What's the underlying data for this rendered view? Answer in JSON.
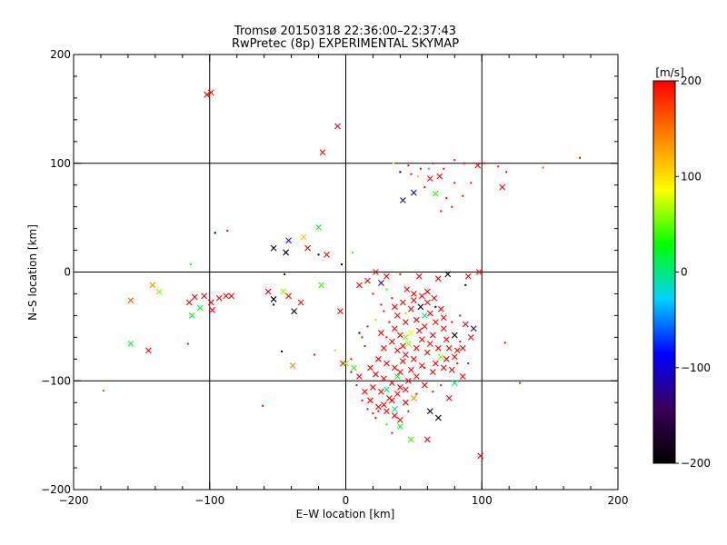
{
  "chart_data": {
    "type": "scatter",
    "title": "Tromsø 20150318 22:36:00–22:37:43",
    "subtitle": "RwPretec (8p) EXPERIMENTAL SKYMAP",
    "xlabel": "E–W location [km]",
    "ylabel": "N–S location [km]",
    "xlim": [
      -200,
      200
    ],
    "ylim": [
      -200,
      200
    ],
    "xticks": [
      -200,
      -100,
      0,
      100,
      200
    ],
    "yticks": [
      -200,
      -100,
      0,
      100,
      200
    ],
    "grid": [
      -100,
      0,
      100
    ],
    "grid_on": true,
    "colorbar": {
      "label": "[m/s]",
      "range": [
        -200,
        200
      ],
      "ticks": [
        200,
        100,
        0,
        -100,
        -200
      ],
      "colors": [
        "#000000",
        "#3a005a",
        "#0000ff",
        "#00d0ff",
        "#00ff00",
        "#ffff00",
        "#ff8000",
        "#ff0000"
      ]
    },
    "points": [
      [
        -99,
        165,
        200,
        "x"
      ],
      [
        -102,
        163,
        200,
        "x"
      ],
      [
        -6,
        134,
        200,
        "x"
      ],
      [
        -17,
        110,
        200,
        "x"
      ],
      [
        -96,
        36,
        -200,
        "d"
      ],
      [
        -87,
        38,
        200,
        "d"
      ],
      [
        -20,
        41,
        20,
        "x"
      ],
      [
        -31,
        32,
        110,
        "x"
      ],
      [
        -42,
        29,
        -80,
        "x"
      ],
      [
        -53,
        22,
        -200,
        "x"
      ],
      [
        -44,
        18,
        -200,
        "x"
      ],
      [
        -28,
        22,
        200,
        "x"
      ],
      [
        -20,
        16,
        -200,
        "d"
      ],
      [
        -14,
        16,
        200,
        "x"
      ],
      [
        -3,
        7,
        -200,
        "d"
      ],
      [
        5,
        18,
        40,
        "d"
      ],
      [
        -114,
        7,
        20,
        "d"
      ],
      [
        -158,
        -26,
        160,
        "x"
      ],
      [
        -142,
        -12,
        140,
        "x"
      ],
      [
        -137,
        -18,
        60,
        "x"
      ],
      [
        -158,
        -66,
        20,
        "x"
      ],
      [
        -145,
        -72,
        200,
        "x"
      ],
      [
        -115,
        -28,
        200,
        "x"
      ],
      [
        -111,
        -23,
        200,
        "x"
      ],
      [
        -107,
        -33,
        20,
        "x"
      ],
      [
        -113,
        -40,
        20,
        "x"
      ],
      [
        -104,
        -22,
        200,
        "x"
      ],
      [
        -99,
        -28,
        200,
        "x"
      ],
      [
        -98,
        -35,
        200,
        "x"
      ],
      [
        -93,
        -24,
        200,
        "x"
      ],
      [
        -88,
        -22,
        200,
        "x"
      ],
      [
        -84,
        -22,
        200,
        "x"
      ],
      [
        -57,
        -18,
        200,
        "x"
      ],
      [
        -53,
        -25,
        -200,
        "x"
      ],
      [
        -46,
        -18,
        60,
        "x"
      ],
      [
        -42,
        -22,
        200,
        "x"
      ],
      [
        -33,
        -28,
        200,
        "x"
      ],
      [
        -38,
        -36,
        -200,
        "x"
      ],
      [
        -53,
        -30,
        -200,
        "d"
      ],
      [
        -18,
        -12,
        40,
        "x"
      ],
      [
        -45,
        -2,
        -200,
        "d"
      ],
      [
        -4,
        -36,
        200,
        "x"
      ],
      [
        -2,
        -84,
        200,
        "x"
      ],
      [
        -39,
        -86,
        140,
        "x"
      ],
      [
        -116,
        -66,
        200,
        "d"
      ],
      [
        -178,
        -109,
        160,
        "d"
      ],
      [
        -61,
        -123,
        200,
        "d"
      ],
      [
        -47,
        -73,
        -200,
        "d"
      ],
      [
        -23,
        -76,
        200,
        "d"
      ],
      [
        -8,
        -72,
        60,
        "d"
      ],
      [
        42,
        66,
        -120,
        "x"
      ],
      [
        50,
        73,
        -120,
        "x"
      ],
      [
        46,
        98,
        200,
        "d"
      ],
      [
        55,
        95,
        200,
        "d"
      ],
      [
        64,
        100,
        200,
        "d"
      ],
      [
        72,
        95,
        200,
        "d"
      ],
      [
        80,
        103,
        200,
        "d"
      ],
      [
        87,
        100,
        200,
        "d"
      ],
      [
        97,
        98,
        200,
        "x"
      ],
      [
        102,
        100,
        200,
        "d"
      ],
      [
        112,
        97,
        200,
        "d"
      ],
      [
        118,
        92,
        200,
        "d"
      ],
      [
        145,
        96,
        160,
        "d"
      ],
      [
        172,
        105,
        200,
        "d"
      ],
      [
        115,
        78,
        200,
        "x"
      ],
      [
        92,
        82,
        200,
        "d"
      ],
      [
        80,
        82,
        200,
        "d"
      ],
      [
        69,
        88,
        200,
        "x"
      ],
      [
        62,
        86,
        200,
        "x"
      ],
      [
        58,
        78,
        200,
        "d"
      ],
      [
        66,
        72,
        40,
        "x"
      ],
      [
        74,
        68,
        200,
        "d"
      ],
      [
        86,
        70,
        200,
        "d"
      ],
      [
        40,
        92,
        -200,
        "d"
      ],
      [
        48,
        90,
        200,
        "d"
      ],
      [
        35,
        100,
        80,
        "d"
      ],
      [
        61,
        95,
        20,
        "d"
      ],
      [
        53,
        88,
        120,
        "d"
      ],
      [
        78,
        60,
        200,
        "d"
      ],
      [
        70,
        56,
        200,
        "d"
      ],
      [
        22,
        0,
        200,
        "x"
      ],
      [
        30,
        -4,
        200,
        "x"
      ],
      [
        40,
        -2,
        200,
        "d"
      ],
      [
        54,
        -4,
        200,
        "x"
      ],
      [
        68,
        -6,
        200,
        "x"
      ],
      [
        75,
        -2,
        -200,
        "x"
      ],
      [
        90,
        -4,
        200,
        "x"
      ],
      [
        98,
        0,
        200,
        "x"
      ],
      [
        88,
        -12,
        -200,
        "d"
      ],
      [
        16,
        -8,
        200,
        "x"
      ],
      [
        10,
        -12,
        200,
        "x"
      ],
      [
        26,
        -10,
        -120,
        "x"
      ],
      [
        30,
        -16,
        40,
        "d"
      ],
      [
        45,
        -16,
        200,
        "x"
      ],
      [
        50,
        -20,
        200,
        "x"
      ],
      [
        60,
        -18,
        200,
        "x"
      ],
      [
        65,
        -24,
        200,
        "x"
      ],
      [
        42,
        -28,
        200,
        "x"
      ],
      [
        48,
        -34,
        200,
        "x"
      ],
      [
        55,
        -32,
        -200,
        "x"
      ],
      [
        62,
        -38,
        200,
        "x"
      ],
      [
        70,
        -34,
        200,
        "x"
      ],
      [
        38,
        -40,
        200,
        "x"
      ],
      [
        44,
        -46,
        200,
        "x"
      ],
      [
        52,
        -44,
        200,
        "x"
      ],
      [
        58,
        -50,
        200,
        "x"
      ],
      [
        66,
        -46,
        200,
        "x"
      ],
      [
        72,
        -52,
        200,
        "x"
      ],
      [
        36,
        -52,
        200,
        "x"
      ],
      [
        40,
        -58,
        200,
        "x"
      ],
      [
        48,
        -56,
        80,
        "x"
      ],
      [
        56,
        -62,
        200,
        "x"
      ],
      [
        64,
        -58,
        200,
        "x"
      ],
      [
        74,
        -62,
        200,
        "x"
      ],
      [
        80,
        -58,
        -200,
        "x"
      ],
      [
        88,
        -48,
        200,
        "x"
      ],
      [
        94,
        -52,
        -120,
        "x"
      ],
      [
        34,
        -64,
        200,
        "x"
      ],
      [
        28,
        -70,
        200,
        "x"
      ],
      [
        38,
        -72,
        200,
        "x"
      ],
      [
        44,
        -76,
        200,
        "x"
      ],
      [
        52,
        -70,
        200,
        "x"
      ],
      [
        60,
        -74,
        200,
        "x"
      ],
      [
        68,
        -70,
        200,
        "x"
      ],
      [
        76,
        -70,
        200,
        "x"
      ],
      [
        82,
        -72,
        200,
        "x"
      ],
      [
        86,
        -70,
        200,
        "x"
      ],
      [
        80,
        -78,
        200,
        "x"
      ],
      [
        24,
        -80,
        200,
        "x"
      ],
      [
        30,
        -84,
        200,
        "x"
      ],
      [
        36,
        -88,
        200,
        "x"
      ],
      [
        42,
        -82,
        200,
        "x"
      ],
      [
        48,
        -90,
        200,
        "x"
      ],
      [
        56,
        -86,
        200,
        "x"
      ],
      [
        64,
        -92,
        200,
        "x"
      ],
      [
        72,
        -88,
        200,
        "x"
      ],
      [
        18,
        -88,
        200,
        "x"
      ],
      [
        22,
        -94,
        200,
        "x"
      ],
      [
        28,
        -98,
        200,
        "x"
      ],
      [
        34,
        -102,
        200,
        "x"
      ],
      [
        40,
        -106,
        200,
        "x"
      ],
      [
        46,
        -100,
        200,
        "x"
      ],
      [
        52,
        -96,
        200,
        "x"
      ],
      [
        58,
        -104,
        200,
        "x"
      ],
      [
        20,
        -106,
        200,
        "x"
      ],
      [
        26,
        -110,
        200,
        "x"
      ],
      [
        32,
        -116,
        200,
        "x"
      ],
      [
        38,
        -112,
        200,
        "x"
      ],
      [
        44,
        -120,
        200,
        "x"
      ],
      [
        50,
        -116,
        140,
        "x"
      ],
      [
        18,
        -118,
        200,
        "x"
      ],
      [
        24,
        -124,
        200,
        "x"
      ],
      [
        30,
        -128,
        200,
        "x"
      ],
      [
        36,
        -132,
        200,
        "x"
      ],
      [
        40,
        -136,
        200,
        "x"
      ],
      [
        62,
        -128,
        -200,
        "x"
      ],
      [
        68,
        -134,
        -200,
        "x"
      ],
      [
        80,
        -102,
        0,
        "x"
      ],
      [
        76,
        -116,
        200,
        "x"
      ],
      [
        92,
        -60,
        200,
        "x"
      ],
      [
        14,
        -110,
        200,
        "x"
      ],
      [
        10,
        -96,
        200,
        "x"
      ],
      [
        6,
        -88,
        40,
        "x"
      ],
      [
        30,
        -108,
        0,
        "x"
      ],
      [
        36,
        -126,
        0,
        "x"
      ],
      [
        44,
        -60,
        60,
        "x"
      ],
      [
        58,
        -40,
        0,
        "x"
      ],
      [
        40,
        -142,
        20,
        "x"
      ],
      [
        48,
        -154,
        40,
        "x"
      ],
      [
        60,
        -154,
        200,
        "x"
      ],
      [
        99,
        -169,
        200,
        "x"
      ],
      [
        128,
        -102,
        200,
        "d"
      ],
      [
        117,
        -65,
        200,
        "d"
      ],
      [
        12,
        -60,
        200,
        "d"
      ],
      [
        16,
        -50,
        200,
        "d"
      ],
      [
        22,
        -44,
        60,
        "d"
      ],
      [
        28,
        -36,
        200,
        "d"
      ],
      [
        34,
        -24,
        200,
        "d"
      ],
      [
        20,
        -20,
        200,
        "d"
      ],
      [
        26,
        -30,
        200,
        "d"
      ],
      [
        10,
        -56,
        -200,
        "d"
      ],
      [
        14,
        -68,
        200,
        "d"
      ],
      [
        30,
        -140,
        40,
        "d"
      ],
      [
        24,
        -128,
        200,
        "d"
      ],
      [
        20,
        -130,
        200,
        "d"
      ],
      [
        38,
        -96,
        20,
        "x"
      ],
      [
        46,
        -66,
        60,
        "x"
      ],
      [
        54,
        -54,
        200,
        "x"
      ],
      [
        62,
        -66,
        200,
        "x"
      ],
      [
        70,
        -78,
        60,
        "x"
      ],
      [
        78,
        -90,
        200,
        "x"
      ],
      [
        86,
        -96,
        200,
        "x"
      ],
      [
        90,
        -84,
        200,
        "d"
      ],
      [
        84,
        -64,
        200,
        "d"
      ],
      [
        70,
        -104,
        200,
        "d"
      ],
      [
        64,
        -110,
        200,
        "d"
      ],
      [
        52,
        -112,
        200,
        "d"
      ],
      [
        46,
        -128,
        200,
        "d"
      ],
      [
        34,
        -148,
        200,
        "d"
      ],
      [
        22,
        -134,
        200,
        "d"
      ],
      [
        16,
        -126,
        200,
        "d"
      ],
      [
        12,
        -118,
        200,
        "d"
      ],
      [
        8,
        -104,
        200,
        "d"
      ],
      [
        4,
        -92,
        200,
        "d"
      ],
      [
        0,
        -84,
        60,
        "x"
      ],
      [
        4,
        -80,
        200,
        "d"
      ],
      [
        56,
        -22,
        200,
        "x"
      ],
      [
        60,
        -28,
        200,
        "x"
      ],
      [
        66,
        -32,
        -200,
        "d"
      ],
      [
        72,
        -42,
        200,
        "x"
      ],
      [
        78,
        -46,
        200,
        "d"
      ],
      [
        84,
        -40,
        200,
        "d"
      ],
      [
        44,
        -38,
        60,
        "d"
      ],
      [
        50,
        -26,
        200,
        "x"
      ],
      [
        36,
        -32,
        200,
        "x"
      ],
      [
        32,
        -46,
        200,
        "d"
      ],
      [
        26,
        -56,
        200,
        "x"
      ],
      [
        30,
        -60,
        200,
        "d"
      ],
      [
        42,
        -68,
        200,
        "x"
      ],
      [
        50,
        -80,
        200,
        "x"
      ],
      [
        58,
        -88,
        200,
        "d"
      ],
      [
        66,
        -84,
        200,
        "x"
      ],
      [
        74,
        -80,
        200,
        "x"
      ],
      [
        82,
        -84,
        200,
        "d"
      ],
      [
        40,
        -92,
        200,
        "x"
      ],
      [
        44,
        -108,
        200,
        "x"
      ],
      [
        34,
        -118,
        200,
        "x"
      ],
      [
        28,
        -122,
        200,
        "x"
      ]
    ]
  }
}
